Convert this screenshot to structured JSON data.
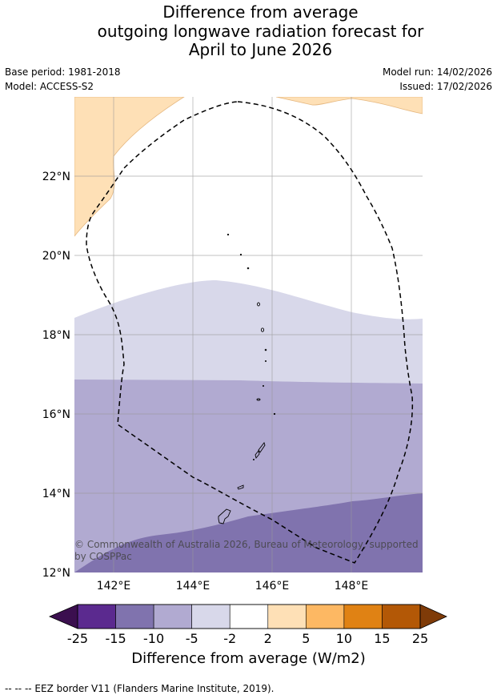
{
  "title": {
    "line1": "Difference from average",
    "line2": "outgoing longwave radiation forecast for",
    "line3": "April to June 2026"
  },
  "meta": {
    "base_period": "Base period: 1981-2018",
    "model": "Model: ACCESS-S2",
    "model_run": "Model run: 14/02/2026",
    "issued": "Issued: 17/02/2026"
  },
  "map": {
    "lat_labels": [
      "22°N",
      "20°N",
      "18°N",
      "16°N",
      "14°N",
      "12°N"
    ],
    "lon_labels": [
      "142°E",
      "144°E",
      "146°E",
      "148°E"
    ],
    "extent": {
      "lon_min": 141.0,
      "lon_max": 149.8,
      "lat_min": 12.0,
      "lat_max": 24.0
    },
    "copyright": "© Commonwealth of Australia 2026, Bureau of Meteorology, supported by COSPPac"
  },
  "colorbar": {
    "ticks": [
      "-25",
      "-15",
      "-10",
      "-5",
      "-2",
      "2",
      "5",
      "10",
      "15",
      "25"
    ],
    "label": "Difference from average (W/m2)",
    "colors": {
      "low_extend": "#3b0f4f",
      "bins": [
        "#5b2a8f",
        "#8073ae",
        "#b1aad1",
        "#d8d8ea",
        "#ffffff",
        "#fee0b6",
        "#fdb863",
        "#e08214",
        "#b35806"
      ],
      "high_extend": "#7f3b08"
    }
  },
  "legend_note": "--  --  -- EEZ border V11 (Flanders Marine Institute, 2019)."
}
